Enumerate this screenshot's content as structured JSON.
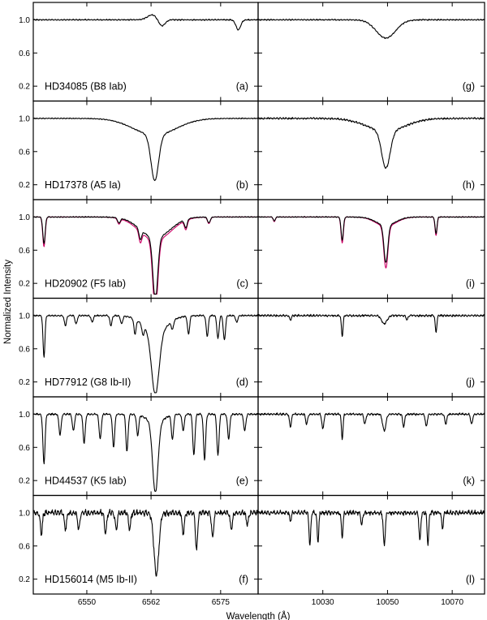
{
  "chart_data": {
    "type": "line",
    "ylabel": "Normalized Intensity",
    "xlabel": "Wavelength (Å)",
    "columns": [
      {
        "xlim": [
          6540,
          6582
        ],
        "xticks": [
          6550,
          6562,
          6575
        ]
      },
      {
        "xlim": [
          10010,
          10080
        ],
        "xticks": [
          10030,
          10050,
          10070
        ]
      }
    ],
    "yticks": [
      1.0,
      0.6,
      0.2
    ],
    "ylim": [
      0.05,
      1.18
    ],
    "colors": {
      "observed": "#000000",
      "model": "#cc0066"
    },
    "rows": [
      {
        "star": "HD34085 (B8 Iab)",
        "left_tag": "(a)",
        "right_tag": "(g)",
        "left_lines": [
          [
            6562.2,
            0.06,
            0.9,
            "emit"
          ],
          [
            6564.0,
            0.08,
            0.6,
            "abs"
          ],
          [
            6578.3,
            0.12,
            0.45,
            "abs"
          ]
        ],
        "right_lines": [
          [
            10049.5,
            0.22,
            3.0,
            "abs"
          ]
        ],
        "left_noise": 0.008,
        "right_noise": 0.008
      },
      {
        "star": "HD17378 (A5 Ia)",
        "left_tag": "(b)",
        "right_tag": "(h)",
        "left_lines": [
          [
            6562.7,
            0.55,
            0.7,
            "abs"
          ],
          [
            6562.7,
            0.2,
            4.0,
            "abs"
          ]
        ],
        "right_lines": [
          [
            10049.5,
            0.45,
            1.3,
            "abs"
          ],
          [
            10049.5,
            0.15,
            6.0,
            "abs"
          ]
        ],
        "left_noise": 0.006,
        "right_noise": 0.012
      },
      {
        "star": "HD20902 (F5 Iab)",
        "left_tag": "(c)",
        "right_tag": "(i)",
        "left_lines": [
          [
            6562.8,
            0.75,
            0.45,
            "abs"
          ],
          [
            6562.8,
            0.25,
            2.8,
            "abs"
          ],
          [
            6542.0,
            0.32,
            0.22,
            "abs"
          ],
          [
            6556.0,
            0.06,
            0.25,
            "abs"
          ],
          [
            6560.0,
            0.12,
            0.25,
            "abs"
          ],
          [
            6568.5,
            0.1,
            0.25,
            "abs"
          ],
          [
            6572.8,
            0.07,
            0.25,
            "abs"
          ]
        ],
        "right_lines": [
          [
            10036.0,
            0.28,
            0.35,
            "abs"
          ],
          [
            10049.5,
            0.45,
            0.6,
            "abs"
          ],
          [
            10049.5,
            0.1,
            3.0,
            "abs"
          ],
          [
            10065.0,
            0.2,
            0.3,
            "abs"
          ],
          [
            10015.0,
            0.05,
            0.3,
            "abs"
          ]
        ],
        "left_noise": 0.006,
        "right_noise": 0.006
      },
      {
        "star": "HD77912 (G8 Ib-II)",
        "left_tag": "(d)",
        "right_tag": "(j)",
        "left_lines": [
          [
            6562.8,
            0.75,
            0.7,
            "abs"
          ],
          [
            6562.8,
            0.2,
            2.2,
            "abs"
          ],
          [
            6542.0,
            0.5,
            0.18,
            "abs"
          ],
          [
            6546.0,
            0.12,
            0.2,
            "abs"
          ],
          [
            6548.0,
            0.1,
            0.2,
            "abs"
          ],
          [
            6551.0,
            0.08,
            0.2,
            "abs"
          ],
          [
            6554.5,
            0.12,
            0.2,
            "abs"
          ],
          [
            6556.5,
            0.1,
            0.2,
            "abs"
          ],
          [
            6559.0,
            0.18,
            0.2,
            "abs"
          ],
          [
            6560.5,
            0.12,
            0.2,
            "abs"
          ],
          [
            6566.0,
            0.1,
            0.2,
            "abs"
          ],
          [
            6569.0,
            0.22,
            0.2,
            "abs"
          ],
          [
            6572.5,
            0.25,
            0.2,
            "abs"
          ],
          [
            6574.5,
            0.28,
            0.2,
            "abs"
          ],
          [
            6575.7,
            0.3,
            0.2,
            "abs"
          ],
          [
            6578.0,
            0.08,
            0.2,
            "abs"
          ]
        ],
        "right_lines": [
          [
            10036.0,
            0.25,
            0.25,
            "abs"
          ],
          [
            10049.0,
            0.1,
            0.8,
            "abs"
          ],
          [
            10065.0,
            0.2,
            0.25,
            "abs"
          ],
          [
            10020.0,
            0.05,
            0.3,
            "abs"
          ],
          [
            10056.0,
            0.05,
            0.3,
            "abs"
          ]
        ],
        "left_noise": 0.01,
        "right_noise": 0.014
      },
      {
        "star": "HD44537 (K5 Iab)",
        "left_tag": "(e)",
        "right_tag": "(k)",
        "left_lines": [
          [
            6562.8,
            0.85,
            0.5,
            "abs"
          ],
          [
            6562.8,
            0.1,
            1.5,
            "abs"
          ],
          [
            6542.0,
            0.6,
            0.2,
            "abs"
          ],
          [
            6545.0,
            0.25,
            0.2,
            "abs"
          ],
          [
            6547.5,
            0.2,
            0.2,
            "abs"
          ],
          [
            6549.5,
            0.35,
            0.2,
            "abs"
          ],
          [
            6552.5,
            0.3,
            0.2,
            "abs"
          ],
          [
            6555.0,
            0.4,
            0.2,
            "abs"
          ],
          [
            6557.5,
            0.45,
            0.2,
            "abs"
          ],
          [
            6559.5,
            0.25,
            0.2,
            "abs"
          ],
          [
            6566.0,
            0.3,
            0.2,
            "abs"
          ],
          [
            6568.0,
            0.2,
            0.2,
            "abs"
          ],
          [
            6570.0,
            0.5,
            0.2,
            "abs"
          ],
          [
            6572.0,
            0.55,
            0.2,
            "abs"
          ],
          [
            6574.5,
            0.5,
            0.2,
            "abs"
          ],
          [
            6576.5,
            0.3,
            0.2,
            "abs"
          ],
          [
            6579.5,
            0.2,
            0.2,
            "abs"
          ]
        ],
        "right_lines": [
          [
            10020.0,
            0.15,
            0.3,
            "abs"
          ],
          [
            10025.0,
            0.12,
            0.3,
            "abs"
          ],
          [
            10030.0,
            0.18,
            0.3,
            "abs"
          ],
          [
            10036.0,
            0.3,
            0.25,
            "abs"
          ],
          [
            10043.0,
            0.12,
            0.3,
            "abs"
          ],
          [
            10049.0,
            0.2,
            0.5,
            "abs"
          ],
          [
            10055.0,
            0.15,
            0.3,
            "abs"
          ],
          [
            10062.0,
            0.15,
            0.3,
            "abs"
          ],
          [
            10068.0,
            0.12,
            0.3,
            "abs"
          ],
          [
            10076.0,
            0.12,
            0.3,
            "abs"
          ]
        ],
        "left_noise": 0.012,
        "right_noise": 0.014
      },
      {
        "star": "HD156014 (M5 Ib-II)",
        "left_tag": "(f)",
        "right_tag": "(l)",
        "left_lines": [
          [
            6563.0,
            0.75,
            0.45,
            "abs"
          ],
          [
            6541.5,
            0.25,
            0.2,
            "abs"
          ],
          [
            6546.0,
            0.2,
            0.2,
            "abs"
          ],
          [
            6548.5,
            0.2,
            0.2,
            "abs"
          ],
          [
            6553.5,
            0.25,
            0.2,
            "abs"
          ],
          [
            6555.5,
            0.2,
            0.2,
            "abs"
          ],
          [
            6558.0,
            0.2,
            0.2,
            "abs"
          ],
          [
            6568.0,
            0.25,
            0.2,
            "abs"
          ],
          [
            6570.5,
            0.45,
            0.2,
            "abs"
          ],
          [
            6573.5,
            0.3,
            0.2,
            "abs"
          ],
          [
            6577.0,
            0.2,
            0.2,
            "abs"
          ],
          [
            6580.0,
            0.15,
            0.2,
            "abs"
          ]
        ],
        "right_lines": [
          [
            10026.0,
            0.4,
            0.25,
            "abs"
          ],
          [
            10028.5,
            0.35,
            0.25,
            "abs"
          ],
          [
            10036.0,
            0.3,
            0.25,
            "abs"
          ],
          [
            10049.0,
            0.4,
            0.3,
            "abs"
          ],
          [
            10060.0,
            0.35,
            0.25,
            "abs"
          ],
          [
            10062.5,
            0.38,
            0.25,
            "abs"
          ],
          [
            10067.0,
            0.2,
            0.25,
            "abs"
          ],
          [
            10042.0,
            0.15,
            0.25,
            "abs"
          ],
          [
            10020.0,
            0.1,
            0.25,
            "abs"
          ]
        ],
        "left_noise": 0.04,
        "right_noise": 0.03
      }
    ]
  }
}
